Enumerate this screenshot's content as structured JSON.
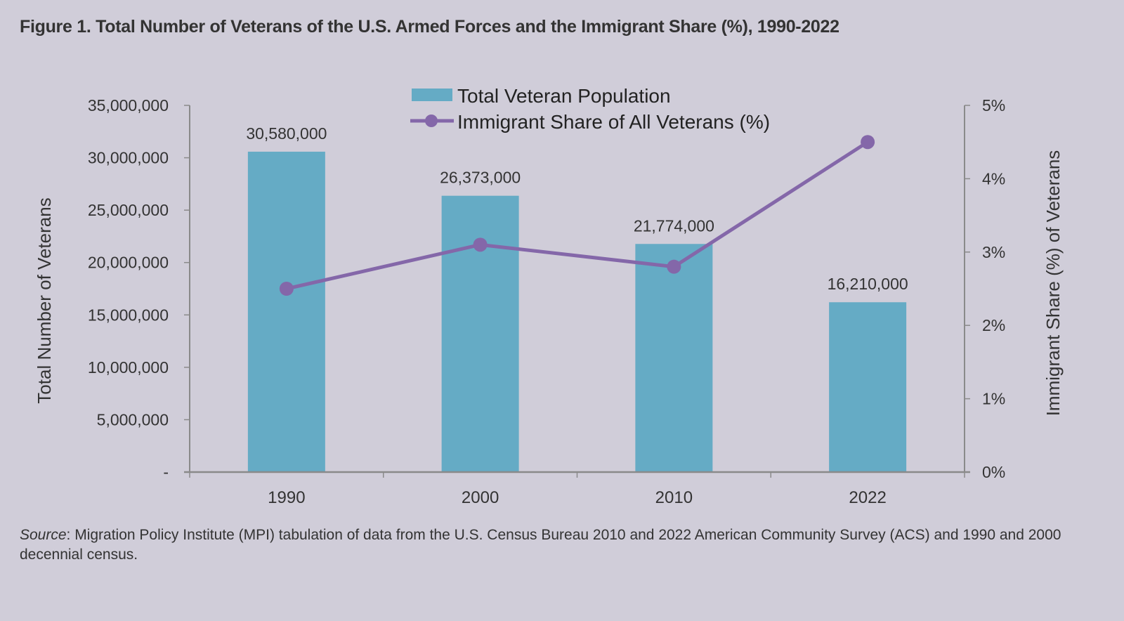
{
  "figure": {
    "title": "Figure 1. Total Number of Veterans of the U.S. Armed Forces and the Immigrant Share (%), 1990-2022",
    "source_label": "Source",
    "source_text": ": Migration Policy Institute (MPI) tabulation of data from the U.S. Census Bureau 2010 and 2022 American Community Survey (ACS) and 1990 and 2000 decennial census."
  },
  "chart_data": {
    "type": "bar",
    "title": "Figure 1. Total Number of Veterans of the U.S. Armed Forces and the Immigrant Share (%), 1990-2022",
    "categories": [
      "1990",
      "2000",
      "2010",
      "2022"
    ],
    "series": [
      {
        "name": "Total Veteran Population",
        "type": "bar",
        "axis": "left",
        "color": "#65abc5",
        "values": [
          30580000,
          26373000,
          21774000,
          16210000
        ],
        "labels": [
          "30,580,000",
          "26,373,000",
          "21,774,000",
          "16,210,000"
        ]
      },
      {
        "name": "Immigrant Share of All Veterans (%)",
        "type": "line",
        "axis": "right",
        "color": "#8467a9",
        "values": [
          2.5,
          3.1,
          2.8,
          4.5
        ]
      }
    ],
    "xlabel": "",
    "ylabel": "Total Number of Veterans",
    "y2label": "Immigrant Share (%) of Veterans",
    "ylim": [
      0,
      35000000
    ],
    "y2lim": [
      0,
      5
    ],
    "yticks": [
      0,
      5000000,
      10000000,
      15000000,
      20000000,
      25000000,
      30000000,
      35000000
    ],
    "ytick_labels": [
      "-",
      "5,000,000",
      "10,000,000",
      "15,000,000",
      "20,000,000",
      "25,000,000",
      "30,000,000",
      "35,000,000"
    ],
    "y2ticks": [
      0,
      1,
      2,
      3,
      4,
      5
    ],
    "y2tick_labels": [
      "0%",
      "1%",
      "2%",
      "3%",
      "4%",
      "5%"
    ],
    "grid": false,
    "legend": {
      "position": "top-center",
      "entries": [
        "Total Veteran Population",
        "Immigrant Share of All Veterans (%)"
      ]
    },
    "axis_color": "#8a8a8a",
    "text_color": "#333333"
  }
}
